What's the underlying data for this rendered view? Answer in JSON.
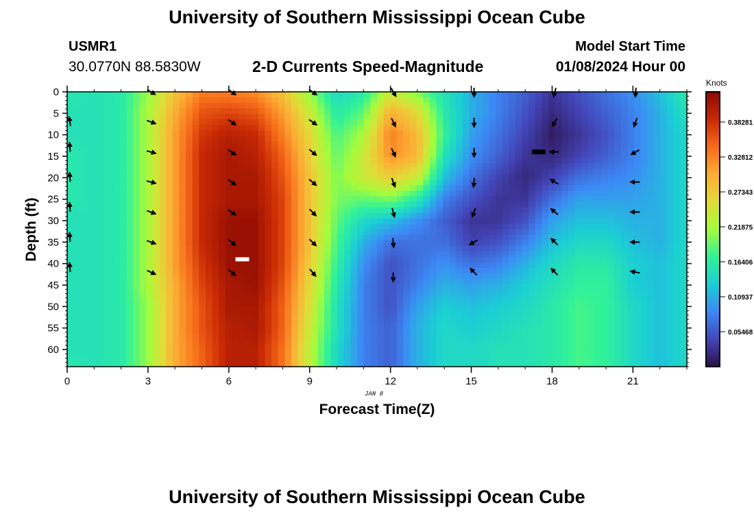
{
  "header": {
    "title": "University of Southern Mississippi Ocean Cube",
    "station": "USMR1",
    "coordinates": "30.0770N  88.5830W",
    "subtitle": "2-D Currents Speed-Magnitude",
    "model_start_label": "Model Start Time",
    "model_start_value": "01/08/2024 Hour 00"
  },
  "date_label": "JAN 8",
  "footer_title": "University of Southern Mississippi Ocean Cube",
  "chart_data": {
    "type": "heatmap",
    "xlabel": "Forecast Time(Z)",
    "ylabel": "Depth (ft)",
    "x_ticks": [
      0,
      3,
      6,
      9,
      12,
      15,
      18,
      21
    ],
    "y_ticks": [
      0,
      5,
      10,
      15,
      20,
      25,
      30,
      35,
      40,
      45,
      50,
      55,
      60
    ],
    "xlim": [
      0,
      23
    ],
    "ylim": [
      0,
      64
    ],
    "y_inverted": true,
    "colorbar": {
      "title": "Knots",
      "ticks": [
        "0.38281",
        "0.32812",
        "0.27343",
        "0.21875",
        "0.16406",
        "0.10937",
        "0.05468"
      ],
      "tick_values": [
        0.38281,
        0.32812,
        0.27343,
        0.21875,
        0.16406,
        0.10937,
        0.05468
      ],
      "range": [
        0.0,
        0.43
      ],
      "colormap": [
        "#2c0f49",
        "#4346b9",
        "#3c8af5",
        "#1bcfd4",
        "#31f299",
        "#a4fc3c",
        "#e2dc38",
        "#fdac35",
        "#f66b19",
        "#ca2a04",
        "#8b0a03"
      ]
    },
    "speed_grid": {
      "hours": [
        0,
        1,
        2,
        3,
        4,
        5,
        6,
        7,
        8,
        9,
        10,
        11,
        12,
        13,
        14,
        15,
        16,
        17,
        18,
        19,
        20,
        21,
        22,
        23
      ],
      "depths": [
        0,
        5,
        10,
        15,
        20,
        25,
        30,
        35,
        40,
        45,
        50,
        55,
        60,
        64
      ],
      "values": [
        [
          0.16,
          0.15,
          0.15,
          0.16,
          0.16,
          0.16,
          0.15,
          0.15,
          0.15,
          0.15,
          0.15,
          0.15,
          0.15,
          0.16
        ],
        [
          0.15,
          0.15,
          0.15,
          0.15,
          0.15,
          0.15,
          0.15,
          0.15,
          0.15,
          0.15,
          0.15,
          0.15,
          0.15,
          0.15
        ],
        [
          0.16,
          0.16,
          0.16,
          0.16,
          0.16,
          0.16,
          0.16,
          0.16,
          0.16,
          0.16,
          0.16,
          0.16,
          0.16,
          0.16
        ],
        [
          0.21,
          0.22,
          0.22,
          0.22,
          0.22,
          0.22,
          0.22,
          0.22,
          0.22,
          0.22,
          0.21,
          0.21,
          0.21,
          0.21
        ],
        [
          0.28,
          0.3,
          0.31,
          0.31,
          0.31,
          0.31,
          0.31,
          0.31,
          0.31,
          0.3,
          0.3,
          0.3,
          0.3,
          0.3
        ],
        [
          0.33,
          0.36,
          0.38,
          0.39,
          0.39,
          0.39,
          0.39,
          0.39,
          0.38,
          0.37,
          0.36,
          0.36,
          0.35,
          0.35
        ],
        [
          0.33,
          0.37,
          0.4,
          0.41,
          0.41,
          0.41,
          0.42,
          0.42,
          0.42,
          0.41,
          0.41,
          0.4,
          0.4,
          0.4
        ],
        [
          0.32,
          0.36,
          0.39,
          0.4,
          0.41,
          0.41,
          0.42,
          0.42,
          0.42,
          0.42,
          0.41,
          0.41,
          0.4,
          0.4
        ],
        [
          0.28,
          0.31,
          0.33,
          0.35,
          0.36,
          0.37,
          0.37,
          0.37,
          0.37,
          0.36,
          0.35,
          0.35,
          0.34,
          0.34
        ],
        [
          0.21,
          0.24,
          0.26,
          0.27,
          0.28,
          0.28,
          0.28,
          0.28,
          0.27,
          0.26,
          0.25,
          0.24,
          0.23,
          0.23
        ],
        [
          0.14,
          0.16,
          0.18,
          0.19,
          0.2,
          0.2,
          0.19,
          0.18,
          0.17,
          0.16,
          0.15,
          0.15,
          0.14,
          0.14
        ],
        [
          0.16,
          0.19,
          0.22,
          0.24,
          0.24,
          0.19,
          0.14,
          0.11,
          0.09,
          0.08,
          0.08,
          0.08,
          0.08,
          0.08
        ],
        [
          0.24,
          0.3,
          0.33,
          0.32,
          0.27,
          0.2,
          0.12,
          0.07,
          0.05,
          0.05,
          0.05,
          0.06,
          0.06,
          0.06
        ],
        [
          0.2,
          0.26,
          0.29,
          0.29,
          0.24,
          0.16,
          0.09,
          0.07,
          0.07,
          0.08,
          0.1,
          0.11,
          0.11,
          0.11
        ],
        [
          0.15,
          0.16,
          0.17,
          0.15,
          0.12,
          0.08,
          0.06,
          0.07,
          0.09,
          0.11,
          0.13,
          0.14,
          0.14,
          0.14
        ],
        [
          0.11,
          0.11,
          0.1,
          0.09,
          0.07,
          0.05,
          0.03,
          0.04,
          0.07,
          0.1,
          0.12,
          0.13,
          0.14,
          0.14
        ],
        [
          0.08,
          0.08,
          0.07,
          0.06,
          0.04,
          0.03,
          0.03,
          0.05,
          0.08,
          0.11,
          0.13,
          0.14,
          0.15,
          0.15
        ],
        [
          0.06,
          0.05,
          0.04,
          0.03,
          0.02,
          0.03,
          0.05,
          0.08,
          0.11,
          0.13,
          0.14,
          0.15,
          0.15,
          0.15
        ],
        [
          0.03,
          0.02,
          0.01,
          0.02,
          0.04,
          0.07,
          0.1,
          0.12,
          0.14,
          0.15,
          0.16,
          0.16,
          0.16,
          0.16
        ],
        [
          0.05,
          0.04,
          0.03,
          0.04,
          0.07,
          0.1,
          0.12,
          0.14,
          0.16,
          0.17,
          0.18,
          0.18,
          0.18,
          0.18
        ],
        [
          0.07,
          0.06,
          0.05,
          0.06,
          0.08,
          0.1,
          0.12,
          0.14,
          0.16,
          0.17,
          0.17,
          0.17,
          0.17,
          0.17
        ],
        [
          0.09,
          0.08,
          0.08,
          0.08,
          0.09,
          0.1,
          0.11,
          0.12,
          0.13,
          0.13,
          0.14,
          0.14,
          0.14,
          0.14
        ],
        [
          0.12,
          0.11,
          0.11,
          0.11,
          0.11,
          0.11,
          0.11,
          0.11,
          0.12,
          0.12,
          0.12,
          0.12,
          0.12,
          0.12
        ],
        [
          0.16,
          0.15,
          0.14,
          0.14,
          0.14,
          0.14,
          0.14,
          0.14,
          0.14,
          0.14,
          0.14,
          0.14,
          0.14,
          0.14
        ]
      ]
    },
    "vectors": [
      {
        "hour": 0,
        "depth": 7,
        "dir": 350
      },
      {
        "hour": 0,
        "depth": 13,
        "dir": 355
      },
      {
        "hour": 0,
        "depth": 20,
        "dir": 355
      },
      {
        "hour": 0,
        "depth": 27,
        "dir": 355
      },
      {
        "hour": 0,
        "depth": 34,
        "dir": 355
      },
      {
        "hour": 0,
        "depth": 41,
        "dir": 355
      },
      {
        "hour": 3,
        "depth": 0,
        "dir": 120
      },
      {
        "hour": 3,
        "depth": 7,
        "dir": 110
      },
      {
        "hour": 3,
        "depth": 14,
        "dir": 105
      },
      {
        "hour": 3,
        "depth": 21,
        "dir": 105
      },
      {
        "hour": 3,
        "depth": 28,
        "dir": 110
      },
      {
        "hour": 3,
        "depth": 35,
        "dir": 110
      },
      {
        "hour": 3,
        "depth": 42,
        "dir": 115
      },
      {
        "hour": 6,
        "depth": 0,
        "dir": 125
      },
      {
        "hour": 6,
        "depth": 7,
        "dir": 125
      },
      {
        "hour": 6,
        "depth": 14,
        "dir": 125
      },
      {
        "hour": 6,
        "depth": 21,
        "dir": 125
      },
      {
        "hour": 6,
        "depth": 28,
        "dir": 125
      },
      {
        "hour": 6,
        "depth": 35,
        "dir": 130
      },
      {
        "hour": 6,
        "depth": 42,
        "dir": 130
      },
      {
        "hour": 9,
        "depth": 0,
        "dir": 125
      },
      {
        "hour": 9,
        "depth": 7,
        "dir": 125
      },
      {
        "hour": 9,
        "depth": 14,
        "dir": 130
      },
      {
        "hour": 9,
        "depth": 21,
        "dir": 130
      },
      {
        "hour": 9,
        "depth": 28,
        "dir": 135
      },
      {
        "hour": 9,
        "depth": 35,
        "dir": 135
      },
      {
        "hour": 9,
        "depth": 42,
        "dir": 140
      },
      {
        "hour": 12,
        "depth": 0,
        "dir": 150
      },
      {
        "hour": 12,
        "depth": 7,
        "dir": 155
      },
      {
        "hour": 12,
        "depth": 14,
        "dir": 155
      },
      {
        "hour": 12,
        "depth": 21,
        "dir": 160
      },
      {
        "hour": 12,
        "depth": 28,
        "dir": 165
      },
      {
        "hour": 12,
        "depth": 35,
        "dir": 175
      },
      {
        "hour": 12,
        "depth": 43,
        "dir": 180
      },
      {
        "hour": 15,
        "depth": 0,
        "dir": 180
      },
      {
        "hour": 15,
        "depth": 7,
        "dir": 180
      },
      {
        "hour": 15,
        "depth": 14,
        "dir": 180
      },
      {
        "hour": 15,
        "depth": 21,
        "dir": 185
      },
      {
        "hour": 15,
        "depth": 28,
        "dir": 200
      },
      {
        "hour": 15,
        "depth": 35,
        "dir": 240
      },
      {
        "hour": 15,
        "depth": 42,
        "dir": 315
      },
      {
        "hour": 18,
        "depth": 0,
        "dir": 195
      },
      {
        "hour": 18,
        "depth": 7,
        "dir": 210
      },
      {
        "hour": 18,
        "depth": 14,
        "dir": 270
      },
      {
        "hour": 18,
        "depth": 21,
        "dir": 300
      },
      {
        "hour": 18,
        "depth": 28,
        "dir": 310
      },
      {
        "hour": 18,
        "depth": 35,
        "dir": 315
      },
      {
        "hour": 18,
        "depth": 42,
        "dir": 315
      },
      {
        "hour": 21,
        "depth": 0,
        "dir": 185
      },
      {
        "hour": 21,
        "depth": 7,
        "dir": 200
      },
      {
        "hour": 21,
        "depth": 14,
        "dir": 240
      },
      {
        "hour": 21,
        "depth": 21,
        "dir": 270
      },
      {
        "hour": 21,
        "depth": 28,
        "dir": 270
      },
      {
        "hour": 21,
        "depth": 35,
        "dir": 270
      },
      {
        "hour": 21,
        "depth": 42,
        "dir": 280
      }
    ],
    "markers": [
      {
        "type": "white-bar",
        "hour": 6.5,
        "depth": 39
      },
      {
        "type": "black-bar",
        "hour": 17.5,
        "depth": 14
      }
    ]
  }
}
